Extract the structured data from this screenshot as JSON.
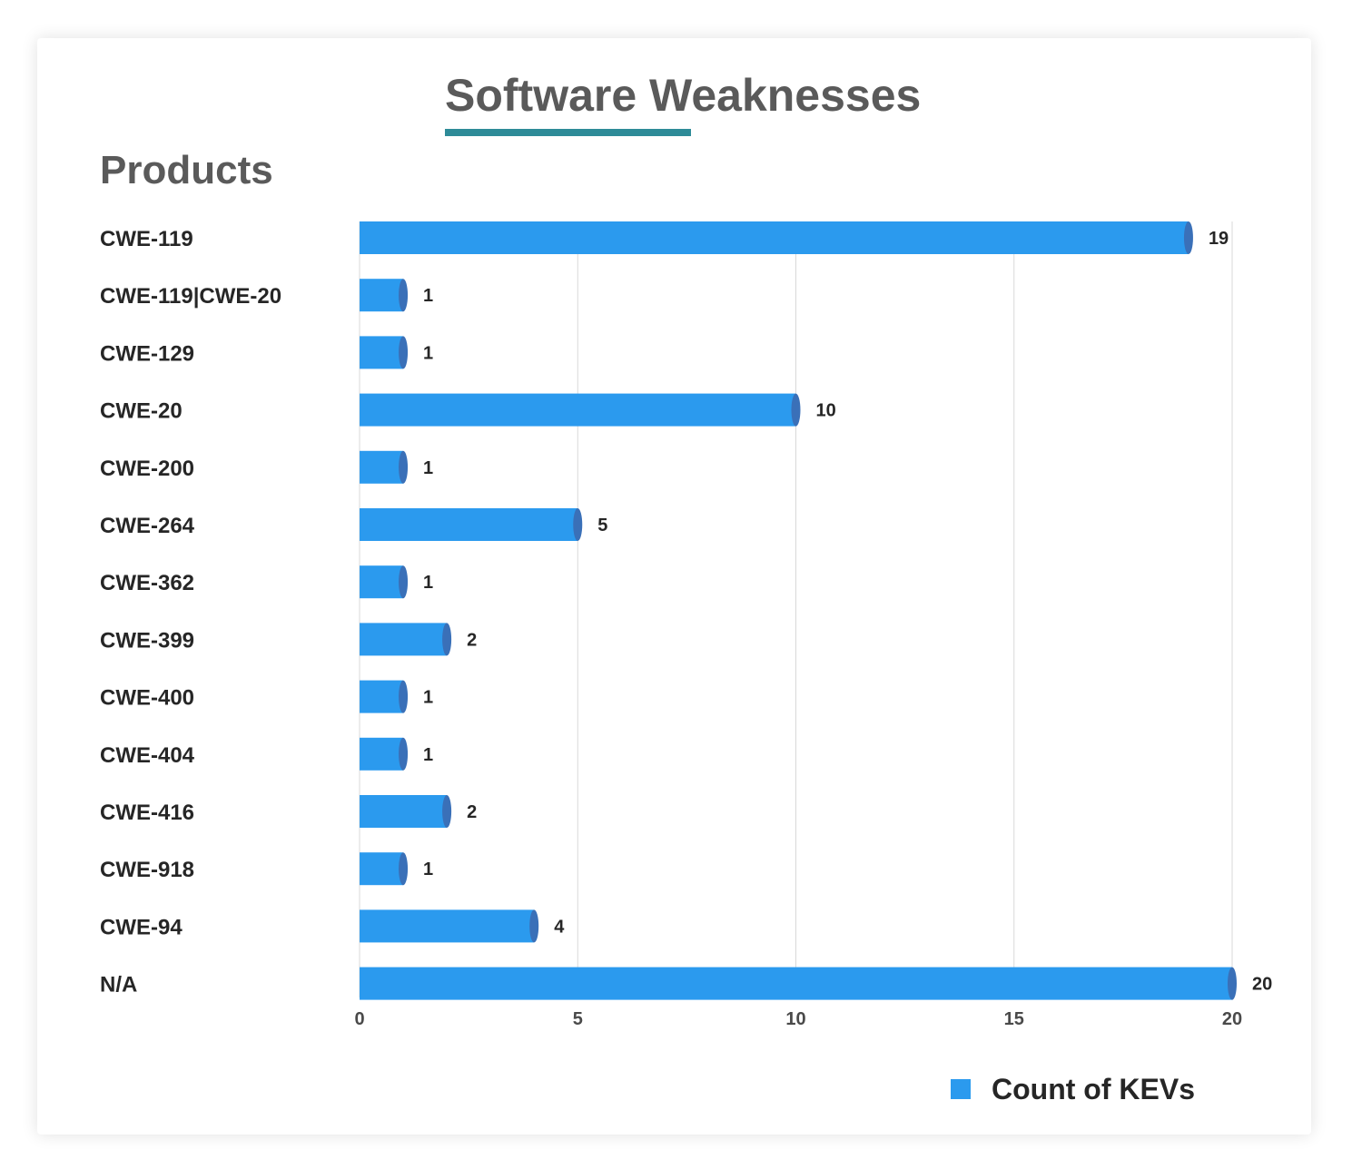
{
  "chart_data": {
    "type": "bar",
    "orientation": "horizontal",
    "title": "Software Weaknesses",
    "subtitle": "Products",
    "categories": [
      "CWE-119",
      "CWE-119|CWE-20",
      "CWE-129",
      "CWE-20",
      "CWE-200",
      "CWE-264",
      "CWE-362",
      "CWE-399",
      "CWE-400",
      "CWE-404",
      "CWE-416",
      "CWE-918",
      "CWE-94",
      "N/A"
    ],
    "series": [
      {
        "name": "Count of KEVs",
        "color": "#2b9aee",
        "values": [
          19,
          1,
          1,
          10,
          1,
          5,
          1,
          2,
          1,
          1,
          2,
          1,
          4,
          20
        ]
      }
    ],
    "xlim": [
      0,
      20
    ],
    "xticks": [
      "0",
      "5",
      "10",
      "15",
      "20"
    ],
    "grid": true,
    "legend": "bottom-right",
    "accent_color": "#2e8b98"
  }
}
